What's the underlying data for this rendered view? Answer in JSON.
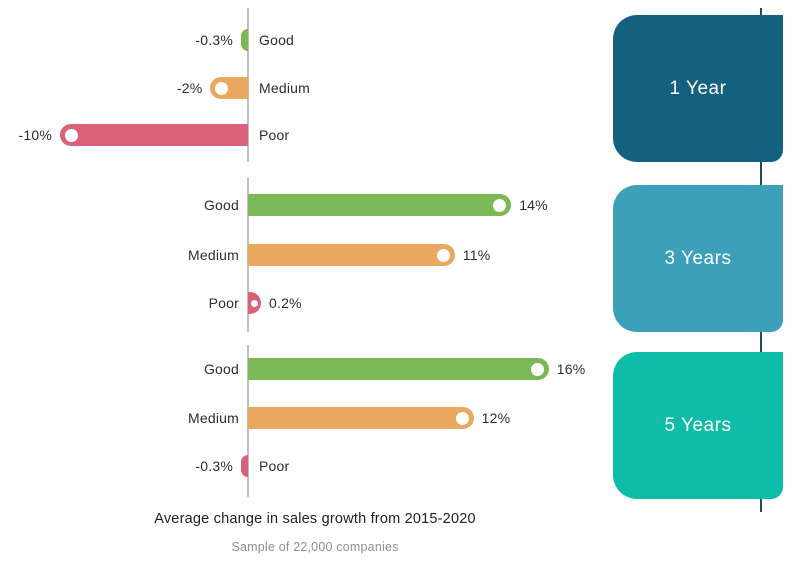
{
  "chart_data": {
    "type": "bar",
    "orientation": "horizontal_diverging",
    "title": "Average change in sales growth from 2015-2020",
    "subtitle": "Sample of 22,000 companies",
    "unit": "%",
    "value_range": [
      -10,
      16
    ],
    "categories": [
      "Good",
      "Medium",
      "Poor"
    ],
    "series_colors": {
      "Good": "#7cb855",
      "Medium": "#eaa85e",
      "Poor": "#d9627a"
    },
    "marker": "white-dot-at-bar-end",
    "groups": [
      {
        "name": "1 Year",
        "box_color": "#14607f",
        "rows": [
          {
            "category": "Good",
            "value": -0.3,
            "label": "-0.3%",
            "color": "#7cb855"
          },
          {
            "category": "Medium",
            "value": -2,
            "label": "-2%",
            "color": "#eaa85e"
          },
          {
            "category": "Poor",
            "value": -10,
            "label": "-10%",
            "color": "#d9627a"
          }
        ]
      },
      {
        "name": "3 Years",
        "box_color": "#3ba0b8",
        "rows": [
          {
            "category": "Good",
            "value": 14,
            "label": "14%",
            "color": "#7cb855"
          },
          {
            "category": "Medium",
            "value": 11,
            "label": "11%",
            "color": "#eaa85e"
          },
          {
            "category": "Poor",
            "value": 0.2,
            "label": "0.2%",
            "color": "#d9627a"
          }
        ]
      },
      {
        "name": "5 Years",
        "box_color": "#0dbca9",
        "rows": [
          {
            "category": "Good",
            "value": 16,
            "label": "16%",
            "color": "#7cb855"
          },
          {
            "category": "Medium",
            "value": 12,
            "label": "12%",
            "color": "#eaa85e"
          },
          {
            "category": "Poor",
            "value": -0.3,
            "label": "-0.3%",
            "color": "#d9627a"
          }
        ]
      }
    ],
    "layout": {
      "zero_axis_color": "#bfbfbf",
      "timeline_color": "#1d4d63",
      "legend": "none",
      "grid": "off",
      "year_label_text_color": "#ffffff"
    }
  }
}
